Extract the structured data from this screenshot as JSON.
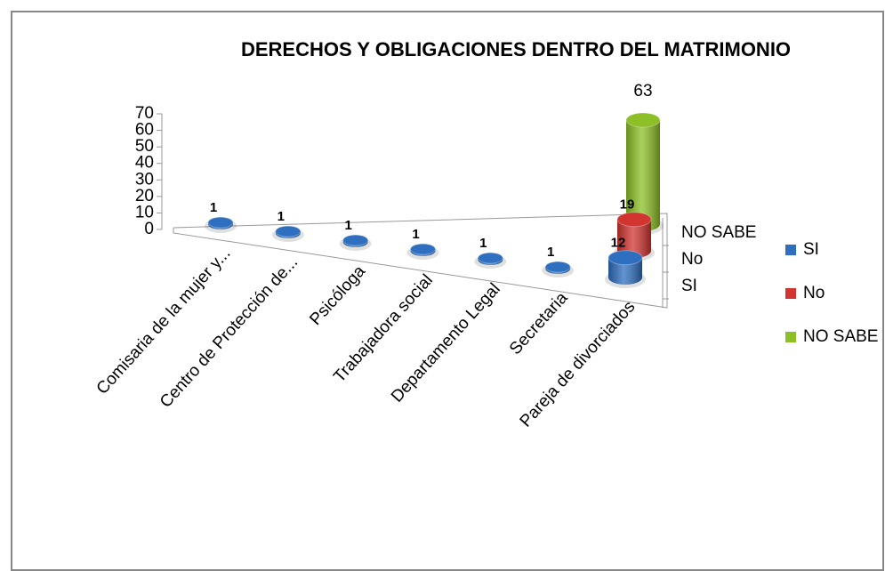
{
  "chart_data": {
    "type": "cylinder3d",
    "title": "DERECHOS Y OBLIGACIONES DENTRO DEL MATRIMONIO",
    "categories": [
      "Comisaria de la  mujer y...",
      "Centro de Protección de...",
      "Psicóloga",
      "Trabajadora social",
      "Departamento Legal",
      "Secretaria",
      "Pareja de divorciados"
    ],
    "series": [
      {
        "name": "SI",
        "color": "#2e6fc0",
        "values": [
          1,
          1,
          1,
          1,
          1,
          1,
          12
        ]
      },
      {
        "name": "No",
        "color": "#d23430",
        "values": [
          null,
          null,
          null,
          null,
          null,
          null,
          19
        ]
      },
      {
        "name": "NO SABE",
        "color": "#8dc026",
        "values": [
          null,
          null,
          null,
          null,
          null,
          null,
          63
        ]
      }
    ],
    "ylim": [
      0,
      70
    ],
    "yticks": [
      0,
      10,
      20,
      30,
      40,
      50,
      60,
      70
    ],
    "legend": "right"
  }
}
